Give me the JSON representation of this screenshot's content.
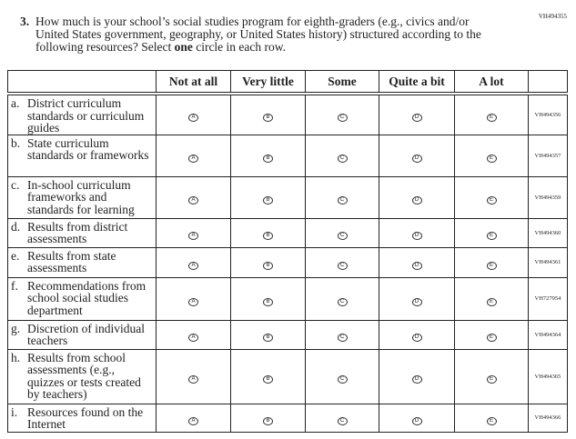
{
  "page_code": "VH494355",
  "question": {
    "number": "3.",
    "text_before": "How much is your school’s social studies program for eighth-graders (e.g., civics and/or United States government, geography, or United States history) structured according to the following resources? Select ",
    "emphasis": "one",
    "text_after": " circle in each row."
  },
  "columns": [
    "Not at all",
    "Very little",
    "Some",
    "Quite a bit",
    "A lot"
  ],
  "bubble_letters": [
    "A",
    "B",
    "C",
    "D",
    "E"
  ],
  "rows": [
    {
      "letter": "a.",
      "label": "District curriculum standards or curriculum guides",
      "code": "VH494356"
    },
    {
      "letter": "b.",
      "label": "State curriculum standards or frameworks",
      "code": "VH494357"
    },
    {
      "letter": "c.",
      "label": "In-school curriculum frameworks and standards for learning",
      "code": "VH494359"
    },
    {
      "letter": "d.",
      "label": "Results from district assessments",
      "code": "VH494360"
    },
    {
      "letter": "e.",
      "label": "Results from state assessments",
      "code": "VH494361"
    },
    {
      "letter": "f.",
      "label": "Recommendations from school social studies department",
      "code": "VH727954"
    },
    {
      "letter": "g.",
      "label": "Discretion of individual teachers",
      "code": "VH494364"
    },
    {
      "letter": "h.",
      "label": "Results from school assessments (e.g., quizzes or tests created by teachers)",
      "code": "VH494365"
    },
    {
      "letter": "i.",
      "label": "Resources found on the Internet",
      "code": "VH494366"
    }
  ]
}
